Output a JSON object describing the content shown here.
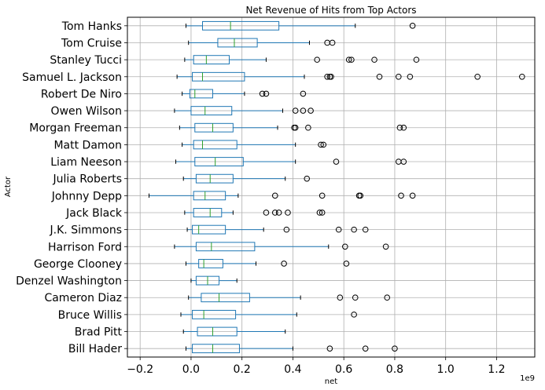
{
  "chart_data": {
    "type": "boxplot",
    "orientation": "horizontal",
    "title": "Net Revenue of Hits from Top Actors",
    "xlabel": "net",
    "ylabel": "Actor",
    "x_offset_label": "1e9",
    "xlim": [
      -0.25,
      1.35
    ],
    "xticks": [
      -0.2,
      0.0,
      0.2,
      0.4,
      0.6,
      0.8,
      1.0,
      1.2
    ],
    "xtick_labels": [
      "−0.2",
      "0.0",
      "0.2",
      "0.4",
      "0.6",
      "0.8",
      "1.0",
      "1.2"
    ],
    "grid": true,
    "colors": {
      "box": "#1f77b4",
      "median": "#2ca02c",
      "grid": "#b0b0b0",
      "flier": "#000000"
    },
    "categories": [
      "Bill Hader",
      "Brad Pitt",
      "Bruce Willis",
      "Cameron Diaz",
      "Denzel Washington",
      "George Clooney",
      "Harrison Ford",
      "J.K. Simmons",
      "Jack Black",
      "Johnny Depp",
      "Julia Roberts",
      "Liam Neeson",
      "Matt Damon",
      "Morgan Freeman",
      "Owen Wilson",
      "Robert De Niro",
      "Samuel L. Jackson",
      "Stanley Tucci",
      "Tom Cruise",
      "Tom Hanks"
    ],
    "boxes": [
      {
        "label": "Bill Hader",
        "whislo": -0.02,
        "q1": 0.005,
        "med": 0.085,
        "q3": 0.19,
        "whishi": 0.4,
        "fliers": [
          0.545,
          0.685,
          0.8
        ]
      },
      {
        "label": "Brad Pitt",
        "whislo": -0.03,
        "q1": 0.025,
        "med": 0.085,
        "q3": 0.18,
        "whishi": 0.37,
        "fliers": []
      },
      {
        "label": "Bruce Willis",
        "whislo": -0.04,
        "q1": 0.005,
        "med": 0.05,
        "q3": 0.175,
        "whishi": 0.415,
        "fliers": [
          0.64
        ]
      },
      {
        "label": "Cameron Diaz",
        "whislo": -0.01,
        "q1": 0.04,
        "med": 0.11,
        "q3": 0.23,
        "whishi": 0.43,
        "fliers": [
          0.585,
          0.645,
          0.77
        ]
      },
      {
        "label": "Denzel Washington",
        "whislo": 0.0,
        "q1": 0.02,
        "med": 0.065,
        "q3": 0.11,
        "whishi": 0.18,
        "fliers": []
      },
      {
        "label": "George Clooney",
        "whislo": -0.02,
        "q1": 0.03,
        "med": 0.05,
        "q3": 0.125,
        "whishi": 0.255,
        "fliers": [
          0.365,
          0.61
        ]
      },
      {
        "label": "Harrison Ford",
        "whislo": -0.065,
        "q1": 0.02,
        "med": 0.08,
        "q3": 0.25,
        "whishi": 0.54,
        "fliers": [
          0.605,
          0.765
        ]
      },
      {
        "label": "J.K. Simmons",
        "whislo": -0.015,
        "q1": 0.005,
        "med": 0.03,
        "q3": 0.135,
        "whishi": 0.285,
        "fliers": [
          0.375,
          0.58,
          0.64,
          0.685
        ]
      },
      {
        "label": "Jack Black",
        "whislo": -0.025,
        "q1": 0.01,
        "med": 0.075,
        "q3": 0.12,
        "whishi": 0.165,
        "fliers": [
          0.295,
          0.33,
          0.345,
          0.38,
          0.505,
          0.515
        ]
      },
      {
        "label": "Johnny Depp",
        "whislo": -0.165,
        "q1": 0.01,
        "med": 0.055,
        "q3": 0.135,
        "whishi": 0.185,
        "fliers": [
          0.33,
          0.515,
          0.66,
          0.665,
          0.825,
          0.87
        ]
      },
      {
        "label": "Julia Roberts",
        "whislo": -0.03,
        "q1": 0.02,
        "med": 0.075,
        "q3": 0.165,
        "whishi": 0.37,
        "fliers": [
          0.455
        ]
      },
      {
        "label": "Liam Neeson",
        "whislo": -0.06,
        "q1": 0.015,
        "med": 0.095,
        "q3": 0.205,
        "whishi": 0.41,
        "fliers": [
          0.57,
          0.815,
          0.835
        ]
      },
      {
        "label": "Matt Damon",
        "whislo": -0.035,
        "q1": 0.01,
        "med": 0.045,
        "q3": 0.18,
        "whishi": 0.41,
        "fliers": [
          0.51,
          0.52
        ]
      },
      {
        "label": "Morgan Freeman",
        "whislo": -0.045,
        "q1": 0.015,
        "med": 0.085,
        "q3": 0.165,
        "whishi": 0.34,
        "fliers": [
          0.405,
          0.41,
          0.46,
          0.82,
          0.835
        ]
      },
      {
        "label": "Owen Wilson",
        "whislo": -0.065,
        "q1": 0.0,
        "med": 0.055,
        "q3": 0.16,
        "whishi": 0.36,
        "fliers": [
          0.41,
          0.44,
          0.47
        ]
      },
      {
        "label": "Robert De Niro",
        "whislo": -0.035,
        "q1": -0.005,
        "med": 0.015,
        "q3": 0.085,
        "whishi": 0.21,
        "fliers": [
          0.28,
          0.295,
          0.44
        ]
      },
      {
        "label": "Samuel L. Jackson",
        "whislo": -0.055,
        "q1": 0.005,
        "med": 0.045,
        "q3": 0.21,
        "whishi": 0.445,
        "fliers": [
          0.535,
          0.545,
          0.55,
          0.74,
          0.815,
          0.86,
          1.125,
          1.3
        ]
      },
      {
        "label": "Stanley Tucci",
        "whislo": -0.025,
        "q1": 0.01,
        "med": 0.06,
        "q3": 0.15,
        "whishi": 0.295,
        "fliers": [
          0.495,
          0.62,
          0.63,
          0.72,
          0.885
        ]
      },
      {
        "label": "Tom Cruise",
        "whislo": -0.01,
        "q1": 0.105,
        "med": 0.17,
        "q3": 0.26,
        "whishi": 0.465,
        "fliers": [
          0.535,
          0.555
        ]
      },
      {
        "label": "Tom Hanks",
        "whislo": -0.02,
        "q1": 0.045,
        "med": 0.155,
        "q3": 0.345,
        "whishi": 0.645,
        "fliers": [
          0.87
        ]
      }
    ]
  }
}
